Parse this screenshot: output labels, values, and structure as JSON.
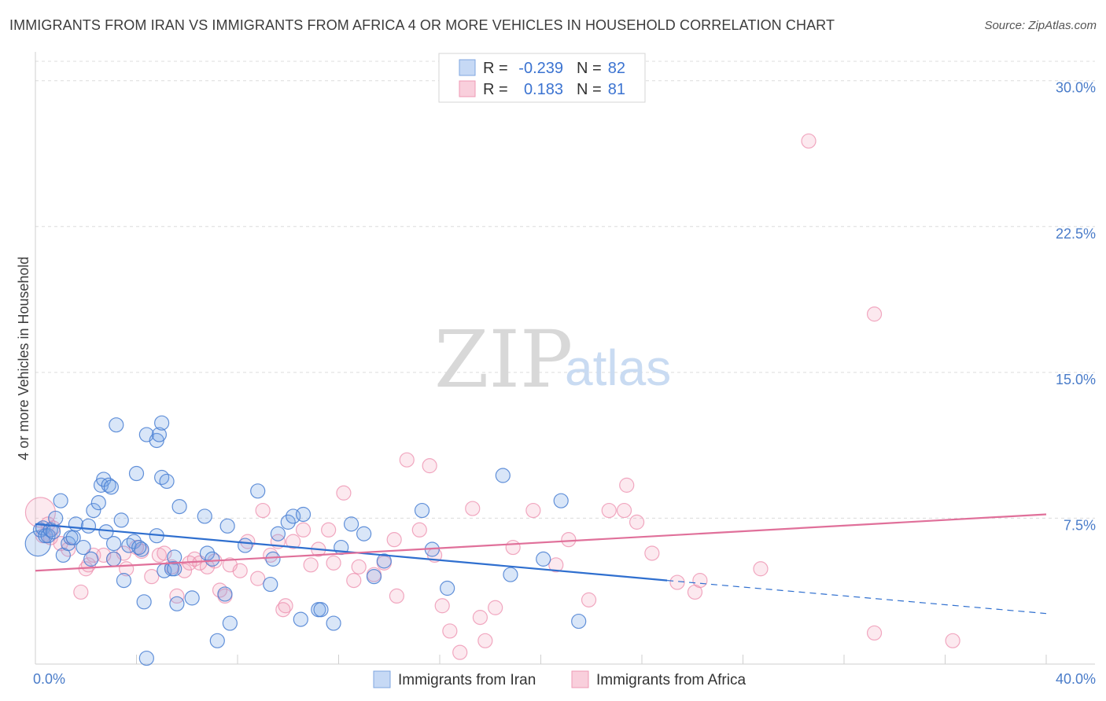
{
  "title": "IMMIGRANTS FROM IRAN VS IMMIGRANTS FROM AFRICA 4 OR MORE VEHICLES IN HOUSEHOLD CORRELATION CHART",
  "source": "Source: ZipAtlas.com",
  "watermark": {
    "zip": "ZIP",
    "atlas": "atlas"
  },
  "legend": {
    "rows": [
      {
        "r_label": "R =",
        "r_value": "-0.239",
        "n_label": "N =",
        "n_value": "82"
      },
      {
        "r_label": "R =",
        "r_value": "0.183",
        "n_label": "N =",
        "n_value": "81"
      }
    ]
  },
  "chart_data": {
    "type": "scatter",
    "title": "IMMIGRANTS FROM IRAN VS IMMIGRANTS FROM AFRICA 4 OR MORE VEHICLES IN HOUSEHOLD CORRELATION CHART",
    "xlabel": "",
    "ylabel": "4 or more Vehicles in Household",
    "xlim": [
      0,
      40
    ],
    "ylim": [
      0,
      31
    ],
    "x_tick_labels": [
      "0.0%",
      "40.0%"
    ],
    "y_ticks": [
      7.5,
      15.0,
      22.5,
      30.0
    ],
    "y_tick_labels": [
      "7.5%",
      "15.0%",
      "22.5%",
      "30.0%"
    ],
    "colors": {
      "iran": "#6f9fe0",
      "africa": "#f09ab6",
      "iran_line": "#2f6fcf",
      "africa_line": "#e0709a"
    },
    "series": [
      {
        "name": "Immigrants from Iran",
        "r": -0.239,
        "n": 82,
        "trend": {
          "x0": 0,
          "y0": 7.2,
          "x1": 25,
          "y1": 4.3,
          "dash_to_x": 40,
          "dash_to_y": 2.6
        },
        "points": [
          [
            0.1,
            6.2
          ],
          [
            0.2,
            6.9
          ],
          [
            0.3,
            7.0
          ],
          [
            0.4,
            6.6
          ],
          [
            0.5,
            6.6
          ],
          [
            0.6,
            6.9
          ],
          [
            0.7,
            6.8
          ],
          [
            0.8,
            7.5
          ],
          [
            1.0,
            8.4
          ],
          [
            1.1,
            5.6
          ],
          [
            1.3,
            6.2
          ],
          [
            1.4,
            6.5
          ],
          [
            1.5,
            6.5
          ],
          [
            1.6,
            7.2
          ],
          [
            1.9,
            6.0
          ],
          [
            2.1,
            7.1
          ],
          [
            2.2,
            5.4
          ],
          [
            2.3,
            7.9
          ],
          [
            2.5,
            8.3
          ],
          [
            2.6,
            9.2
          ],
          [
            2.7,
            9.5
          ],
          [
            2.8,
            6.8
          ],
          [
            2.9,
            9.2
          ],
          [
            3.1,
            5.4
          ],
          [
            3.0,
            9.1
          ],
          [
            3.1,
            6.2
          ],
          [
            3.2,
            12.3
          ],
          [
            3.4,
            7.4
          ],
          [
            3.5,
            4.3
          ],
          [
            3.7,
            6.1
          ],
          [
            3.9,
            6.3
          ],
          [
            4.0,
            9.8
          ],
          [
            4.2,
            5.9
          ],
          [
            4.1,
            6.0
          ],
          [
            4.3,
            3.2
          ],
          [
            4.4,
            0.3
          ],
          [
            4.4,
            11.8
          ],
          [
            4.8,
            11.5
          ],
          [
            4.9,
            11.8
          ],
          [
            4.8,
            6.6
          ],
          [
            5.0,
            12.4
          ],
          [
            5.0,
            9.6
          ],
          [
            5.1,
            4.8
          ],
          [
            5.2,
            9.4
          ],
          [
            5.4,
            4.9
          ],
          [
            5.5,
            5.5
          ],
          [
            5.5,
            4.9
          ],
          [
            5.6,
            3.1
          ],
          [
            5.7,
            8.1
          ],
          [
            6.2,
            3.4
          ],
          [
            6.7,
            7.6
          ],
          [
            6.8,
            5.7
          ],
          [
            7.0,
            5.4
          ],
          [
            7.2,
            1.2
          ],
          [
            7.5,
            3.6
          ],
          [
            7.6,
            7.1
          ],
          [
            7.7,
            2.1
          ],
          [
            8.3,
            6.1
          ],
          [
            8.8,
            8.9
          ],
          [
            9.3,
            4.1
          ],
          [
            9.4,
            5.4
          ],
          [
            9.6,
            6.7
          ],
          [
            10.0,
            7.3
          ],
          [
            10.2,
            7.6
          ],
          [
            10.5,
            2.3
          ],
          [
            10.6,
            7.7
          ],
          [
            11.2,
            2.8
          ],
          [
            11.3,
            2.8
          ],
          [
            11.8,
            2.1
          ],
          [
            12.1,
            6.0
          ],
          [
            12.5,
            7.2
          ],
          [
            13.0,
            6.7
          ],
          [
            13.4,
            4.5
          ],
          [
            13.8,
            5.3
          ],
          [
            15.3,
            7.9
          ],
          [
            15.7,
            5.9
          ],
          [
            16.3,
            3.9
          ],
          [
            18.5,
            9.7
          ],
          [
            18.8,
            4.6
          ],
          [
            20.8,
            8.4
          ],
          [
            20.1,
            5.4
          ],
          [
            21.5,
            2.2
          ]
        ]
      },
      {
        "name": "Immigrants from Africa",
        "r": 0.183,
        "n": 81,
        "trend": {
          "x0": 0,
          "y0": 4.8,
          "x1": 40,
          "y1": 7.7
        },
        "points": [
          [
            0.3,
            6.6
          ],
          [
            0.5,
            7.2
          ],
          [
            0.6,
            6.5
          ],
          [
            0.7,
            7.0
          ],
          [
            1.0,
            6.2
          ],
          [
            1.3,
            5.9
          ],
          [
            1.8,
            3.7
          ],
          [
            2.1,
            5.1
          ],
          [
            2.3,
            5.6
          ],
          [
            2.7,
            5.6
          ],
          [
            3.1,
            5.4
          ],
          [
            3.5,
            5.7
          ],
          [
            3.6,
            4.9
          ],
          [
            4.0,
            6.0
          ],
          [
            4.2,
            5.8
          ],
          [
            4.6,
            4.5
          ],
          [
            4.9,
            5.6
          ],
          [
            5.1,
            5.7
          ],
          [
            5.4,
            5.0
          ],
          [
            5.6,
            3.5
          ],
          [
            5.9,
            4.8
          ],
          [
            6.1,
            5.2
          ],
          [
            6.3,
            5.4
          ],
          [
            6.5,
            5.2
          ],
          [
            6.8,
            5.0
          ],
          [
            7.1,
            5.3
          ],
          [
            7.3,
            3.8
          ],
          [
            7.5,
            3.5
          ],
          [
            7.7,
            5.1
          ],
          [
            8.1,
            4.8
          ],
          [
            8.4,
            6.3
          ],
          [
            8.8,
            4.4
          ],
          [
            9.0,
            7.9
          ],
          [
            9.3,
            5.6
          ],
          [
            9.6,
            6.3
          ],
          [
            9.8,
            2.8
          ],
          [
            9.9,
            3.0
          ],
          [
            10.2,
            6.3
          ],
          [
            10.6,
            6.9
          ],
          [
            10.9,
            5.1
          ],
          [
            11.2,
            5.9
          ],
          [
            11.6,
            6.9
          ],
          [
            11.8,
            5.2
          ],
          [
            12.2,
            8.8
          ],
          [
            12.6,
            4.3
          ],
          [
            12.8,
            5.0
          ],
          [
            13.4,
            4.6
          ],
          [
            13.8,
            5.2
          ],
          [
            14.3,
            3.5
          ],
          [
            14.7,
            10.5
          ],
          [
            15.2,
            6.9
          ],
          [
            15.6,
            10.2
          ],
          [
            16.1,
            3.0
          ],
          [
            16.4,
            1.7
          ],
          [
            16.8,
            0.6
          ],
          [
            17.3,
            8.0
          ],
          [
            17.6,
            2.4
          ],
          [
            17.8,
            1.2
          ],
          [
            18.2,
            2.9
          ],
          [
            18.9,
            6.0
          ],
          [
            19.7,
            7.9
          ],
          [
            20.6,
            5.1
          ],
          [
            21.1,
            6.4
          ],
          [
            21.9,
            3.3
          ],
          [
            22.7,
            7.9
          ],
          [
            23.4,
            9.2
          ],
          [
            23.3,
            7.9
          ],
          [
            23.8,
            7.3
          ],
          [
            24.4,
            5.7
          ],
          [
            25.4,
            4.2
          ],
          [
            26.1,
            3.7
          ],
          [
            26.3,
            4.3
          ],
          [
            28.7,
            4.9
          ],
          [
            30.6,
            26.9
          ],
          [
            33.2,
            18.0
          ],
          [
            33.2,
            1.6
          ],
          [
            36.3,
            1.2
          ],
          [
            0.2,
            7.8
          ],
          [
            2.0,
            4.9
          ],
          [
            15.8,
            5.6
          ],
          [
            14.2,
            6.4
          ]
        ]
      }
    ]
  },
  "bottom_legend": {
    "iran_label": "Immigrants from Iran",
    "africa_label": "Immigrants from Africa"
  }
}
